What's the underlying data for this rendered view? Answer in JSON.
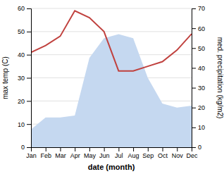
{
  "chart_data": {
    "type": "line",
    "categories": [
      "Jan",
      "Feb",
      "Mar",
      "Apr",
      "May",
      "Jun",
      "Jul",
      "Aug",
      "Sep",
      "Oct",
      "Nov",
      "Dec"
    ],
    "x_label": "date (month)",
    "y_label": "max temp (C)",
    "y2_label": "med. precipitation (kg/m2)",
    "series": [
      {
        "type": "area",
        "axis": "y2",
        "color": "#c5d8f0",
        "values": [
          9,
          15,
          15,
          16,
          45,
          55,
          57,
          55,
          35,
          22,
          20,
          21
        ]
      },
      {
        "type": "line",
        "color": "#c0413e",
        "values": [
          41,
          44,
          48,
          59,
          56,
          50,
          33,
          33,
          35,
          37,
          42,
          49
        ]
      }
    ],
    "ylim": [
      0,
      60
    ],
    "yticks": [
      0,
      10,
      20,
      30,
      40,
      50,
      60
    ],
    "y2lim": [
      0,
      70
    ],
    "y2ticks": [
      0,
      10,
      20,
      30,
      40,
      50,
      60,
      70
    ],
    "grid": true
  }
}
